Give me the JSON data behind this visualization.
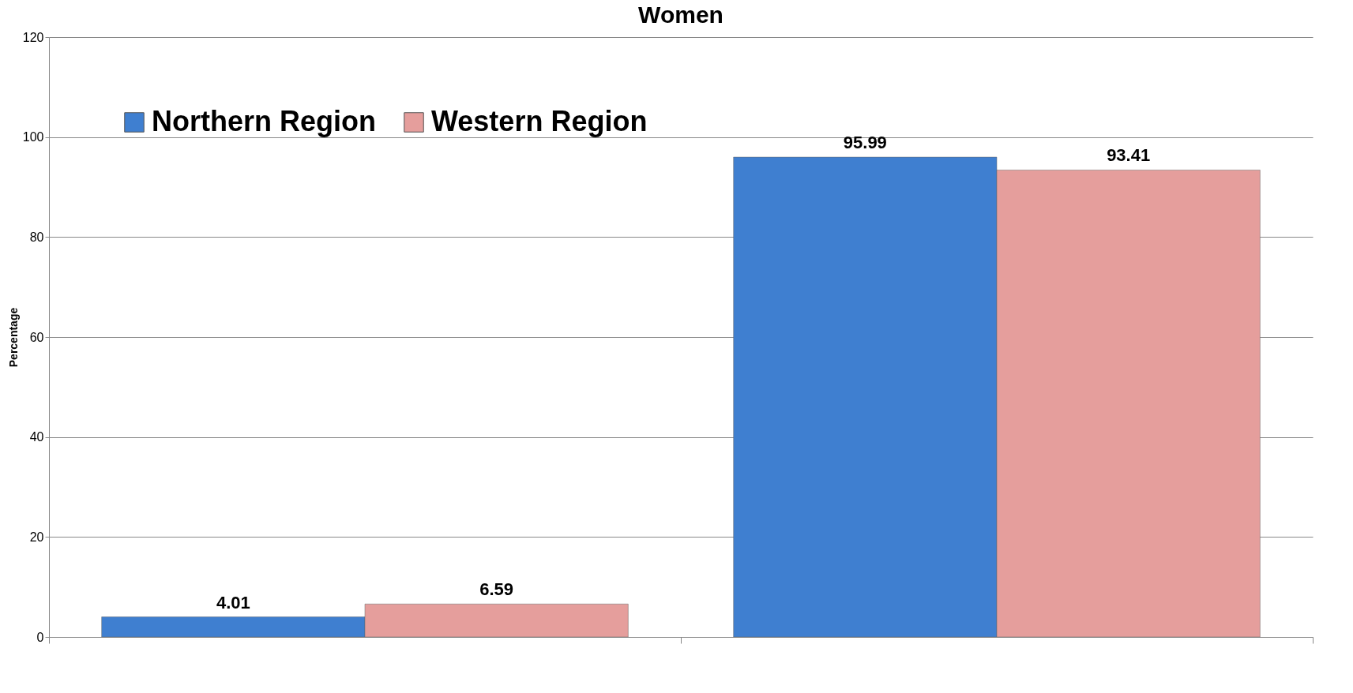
{
  "chart_data": {
    "type": "bar",
    "title": "Women",
    "ylabel": "Percentage",
    "categories": [
      null,
      null
    ],
    "series": [
      {
        "name": "Northern Region",
        "color": "#3f7fd0",
        "values": [
          4.01,
          95.99
        ]
      },
      {
        "name": "Western Region",
        "color": "#e59e9c",
        "values": [
          6.59,
          93.41
        ]
      }
    ],
    "ylim": [
      0,
      120
    ],
    "yticks": [
      0,
      20,
      40,
      60,
      80,
      100,
      120
    ],
    "grid": "y",
    "legend": "top left",
    "data_labels": true
  }
}
